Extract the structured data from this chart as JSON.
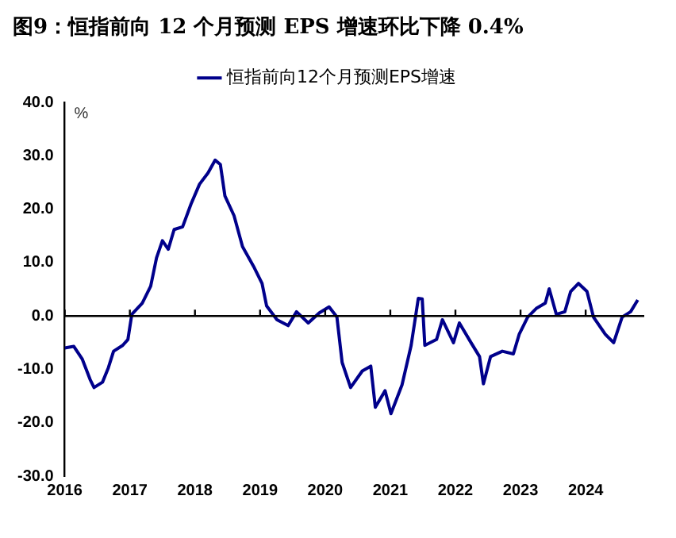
{
  "chart_data": {
    "type": "line",
    "title": "图9：恒指前向 12 个月预测 EPS 增速环比下降 0.4%",
    "ylabel": "%",
    "x": [
      2016.0,
      2016.14,
      2016.27,
      2016.39,
      2016.45,
      2016.58,
      2016.67,
      2016.75,
      2016.89,
      2016.97,
      2017.03,
      2017.19,
      2017.32,
      2017.41,
      2017.5,
      2017.59,
      2017.68,
      2017.81,
      2017.94,
      2018.07,
      2018.2,
      2018.31,
      2018.39,
      2018.46,
      2018.6,
      2018.73,
      2018.9,
      2019.03,
      2019.1,
      2019.26,
      2019.43,
      2019.56,
      2019.74,
      2019.91,
      2020.06,
      2020.18,
      2020.26,
      2020.39,
      2020.57,
      2020.7,
      2020.77,
      2020.92,
      2021.01,
      2021.18,
      2021.32,
      2021.43,
      2021.49,
      2021.53,
      2021.71,
      2021.8,
      2021.97,
      2022.06,
      2022.24,
      2022.37,
      2022.43,
      2022.54,
      2022.72,
      2022.89,
      2022.98,
      2023.11,
      2023.24,
      2023.38,
      2023.44,
      2023.55,
      2023.68,
      2023.77,
      2023.89,
      2024.02,
      2024.12,
      2024.3,
      2024.43,
      2024.56,
      2024.69,
      2024.8
    ],
    "series": [
      {
        "name": "恒指前向12个月预测EPS增速",
        "color": "#00008b",
        "values": [
          -6.0,
          -5.7,
          -8.1,
          -11.9,
          -13.4,
          -12.4,
          -9.7,
          -6.6,
          -5.5,
          -4.4,
          0.3,
          2.4,
          5.6,
          10.9,
          14.1,
          12.5,
          16.2,
          16.7,
          21.0,
          24.7,
          26.8,
          29.2,
          28.4,
          22.5,
          18.8,
          13.0,
          9.3,
          6.1,
          1.9,
          -0.7,
          -1.8,
          0.8,
          -1.3,
          0.6,
          1.7,
          -0.2,
          -8.7,
          -13.4,
          -10.3,
          -9.4,
          -17.1,
          -14.0,
          -18.3,
          -12.9,
          -5.5,
          3.3,
          3.2,
          -5.5,
          -4.4,
          -0.7,
          -5.0,
          -1.3,
          -5.0,
          -7.6,
          -12.7,
          -7.6,
          -6.6,
          -7.1,
          -3.4,
          -0.2,
          1.4,
          2.4,
          5.1,
          0.3,
          0.8,
          4.6,
          6.1,
          4.6,
          -0.2,
          -3.4,
          -5.0,
          -0.2,
          0.8,
          3.0
        ]
      }
    ],
    "xlim": [
      2016,
      2024.9
    ],
    "xticks": [
      2016,
      2017,
      2018,
      2019,
      2020,
      2021,
      2022,
      2023,
      2024
    ],
    "ylim": [
      -30,
      40
    ],
    "yticks": [
      {
        "value": -30,
        "label": "-30.0"
      },
      {
        "value": -20,
        "label": "-20.0"
      },
      {
        "value": -10,
        "label": "-10.0"
      },
      {
        "value": 0,
        "label": "0.0"
      },
      {
        "value": 10,
        "label": "10.0"
      },
      {
        "value": 20,
        "label": "20.0"
      },
      {
        "value": 30,
        "label": "30.0"
      },
      {
        "value": 40,
        "label": "40.0"
      }
    ],
    "ref_lines": [
      {
        "axis": "y",
        "value": 0,
        "color": "#000000"
      }
    ],
    "grid": false,
    "legend": "top",
    "marker": "none",
    "line_style": "solid"
  }
}
